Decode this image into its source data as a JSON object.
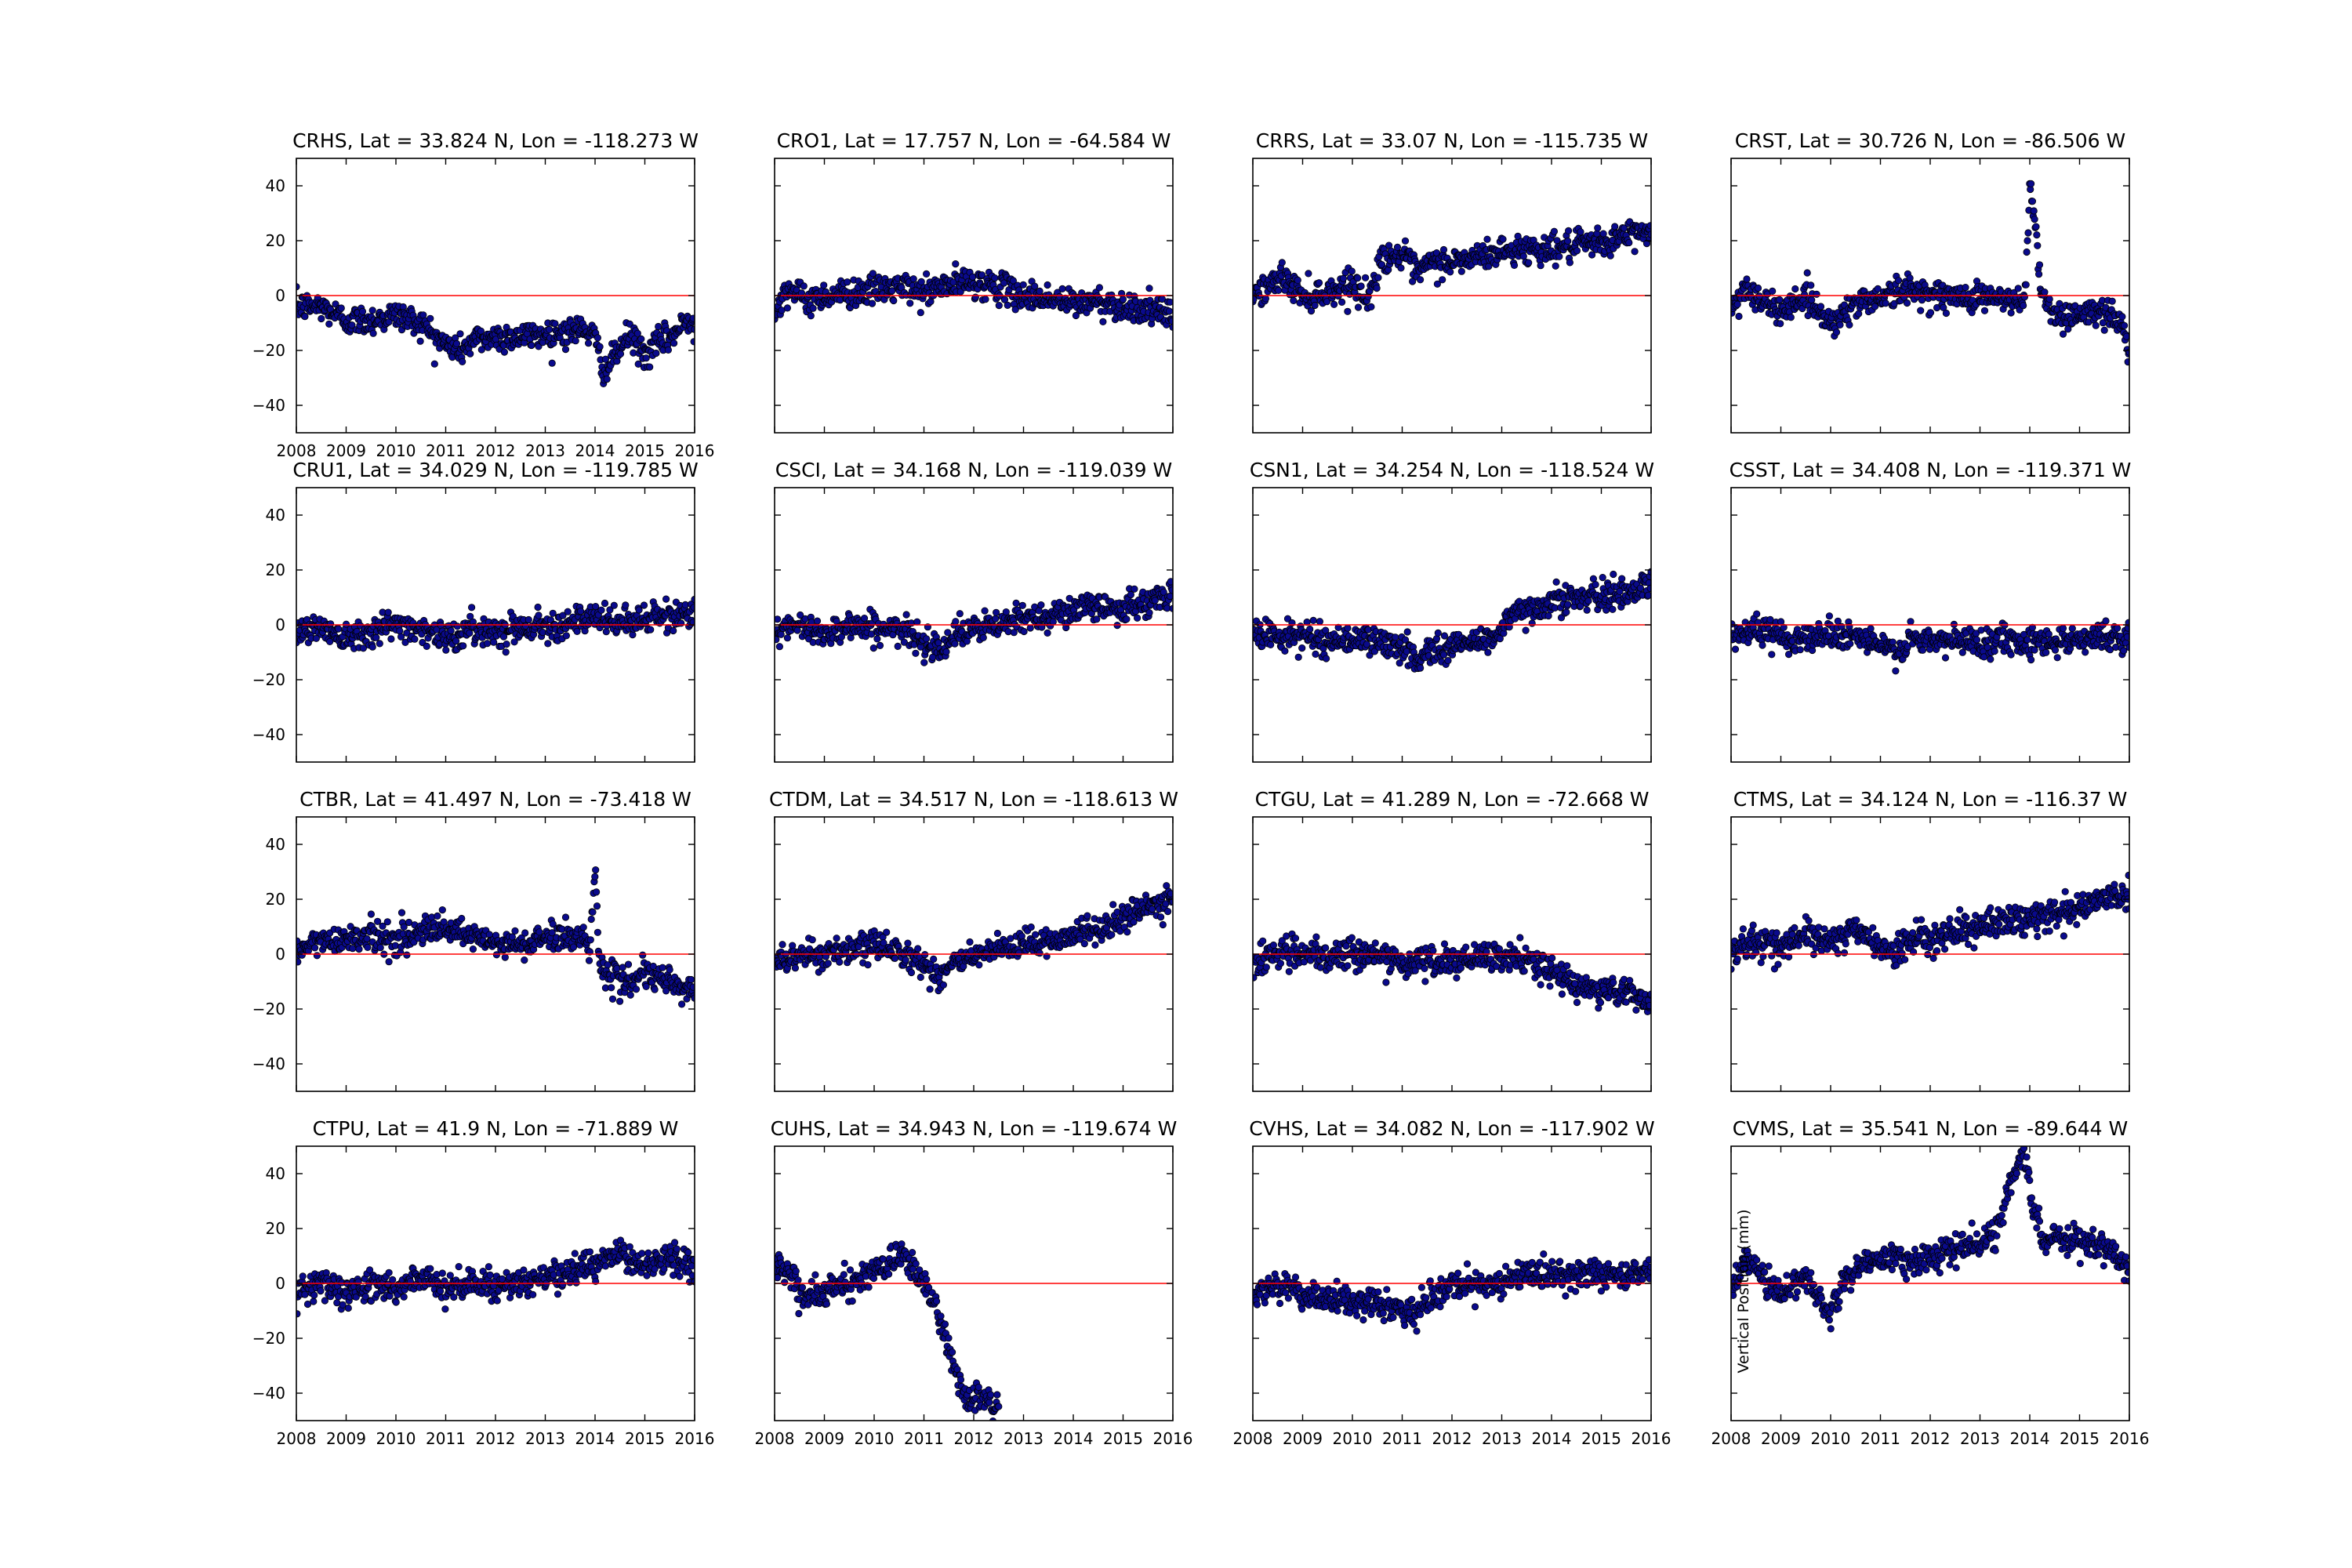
{
  "colors": {
    "marker_fill": "#0a0a8c",
    "marker_edge": "#000000",
    "zero_line": "#ff0000",
    "axes_frame": "#000000",
    "background": "#ffffff"
  },
  "chart_data": [
    {
      "type": "scatter",
      "title": "CRHS, Lat = 33.824 N, Lon = -118.273 W",
      "xlim": [
        2008,
        2016
      ],
      "ylim": [
        -50,
        50
      ],
      "xticks": [
        "2008",
        "2009",
        "2010",
        "2011",
        "2012",
        "2013",
        "2014",
        "2015",
        "2016"
      ],
      "yticks": [
        "40",
        "20",
        "0",
        "−20",
        "−40"
      ],
      "xlabel": "",
      "ylabel": "",
      "reference_line_y": 0,
      "series": [
        {
          "x": [
            2008.0,
            2008.5,
            2009.0,
            2009.5,
            2010.0,
            2010.5,
            2011.0,
            2011.3,
            2011.6,
            2012.0,
            2012.5,
            2013.0,
            2013.5,
            2013.8,
            2014.0,
            2014.2,
            2014.4,
            2014.7,
            2015.0,
            2015.3,
            2015.6,
            2015.9,
            2016.0
          ],
          "y": [
            -4,
            -4,
            -9,
            -9,
            -7,
            -10,
            -18,
            -20,
            -16,
            -15,
            -15,
            -14,
            -13,
            -12,
            -16,
            -28,
            -22,
            -14,
            -22,
            -17,
            -14,
            -8,
            -12
          ]
        }
      ]
    },
    {
      "type": "scatter",
      "title": "CRO1, Lat = 17.757 N, Lon = -64.584 W",
      "xlim": [
        2008,
        2016
      ],
      "ylim": [
        -50,
        50
      ],
      "xticks": [],
      "yticks": [],
      "xlabel": "",
      "ylabel": "",
      "reference_line_y": 0,
      "series": [
        {
          "x": [
            2008.0,
            2008.3,
            2008.6,
            2009.0,
            2009.5,
            2010.0,
            2010.5,
            2011.0,
            2011.5,
            2012.0,
            2012.5,
            2013.0,
            2013.5,
            2014.0,
            2014.5,
            2015.0,
            2015.5,
            2016.0
          ],
          "y": [
            -4,
            3,
            -2,
            0,
            1,
            2,
            3,
            1,
            4,
            5,
            3,
            0,
            -1,
            -3,
            -2,
            -4,
            -5,
            -8
          ]
        }
      ]
    },
    {
      "type": "scatter",
      "title": "CRRS, Lat = 33.07 N, Lon = -115.735 W",
      "xlim": [
        2008,
        2016
      ],
      "ylim": [
        -50,
        50
      ],
      "xticks": [],
      "yticks": [],
      "xlabel": "",
      "ylabel": "",
      "reference_line_y": 0,
      "series": [
        {
          "x": [
            2008.0,
            2008.3,
            2008.6,
            2009.0,
            2009.5,
            2010.0,
            2010.3,
            2010.6,
            2011.0,
            2011.3,
            2011.6,
            2012.0,
            2012.5,
            2013.0,
            2013.5,
            2014.0,
            2014.5,
            2015.0,
            2015.5,
            2016.0
          ],
          "y": [
            1,
            3,
            7,
            0,
            1,
            5,
            -2,
            14,
            15,
            8,
            12,
            12,
            14,
            16,
            17,
            17,
            18,
            19,
            22,
            24
          ]
        }
      ]
    },
    {
      "type": "scatter",
      "title": "CRST, Lat = 30.726 N, Lon = -86.506 W",
      "xlim": [
        2008,
        2016
      ],
      "ylim": [
        -50,
        50
      ],
      "xticks": [],
      "yticks": [],
      "xlabel": "",
      "ylabel": "",
      "reference_line_y": 0,
      "series": [
        {
          "x": [
            2008.0,
            2008.3,
            2008.6,
            2009.0,
            2009.5,
            2010.0,
            2010.5,
            2011.0,
            2011.5,
            2012.0,
            2012.5,
            2013.0,
            2013.6,
            2013.9,
            2014.0,
            2014.1,
            2014.2,
            2014.4,
            2014.7,
            2015.0,
            2015.3,
            2015.6,
            2015.9,
            2016.0
          ],
          "y": [
            -6,
            4,
            -3,
            -5,
            0,
            -10,
            -3,
            0,
            2,
            1,
            -1,
            0,
            -2,
            -3,
            40,
            30,
            5,
            -5,
            -8,
            -6,
            -7,
            -5,
            -12,
            -25
          ]
        }
      ]
    },
    {
      "type": "scatter",
      "title": "CRU1, Lat = 34.029 N, Lon = -119.785 W",
      "xlim": [
        2008,
        2016
      ],
      "ylim": [
        -50,
        50
      ],
      "xticks": [],
      "yticks": [
        "40",
        "20",
        "0",
        "−20",
        "−40"
      ],
      "xlabel": "",
      "ylabel": "",
      "reference_line_y": 0,
      "series": [
        {
          "x": [
            2008.0,
            2008.5,
            2009.0,
            2009.5,
            2010.0,
            2010.5,
            2011.0,
            2011.5,
            2012.0,
            2012.5,
            2013.0,
            2013.5,
            2014.0,
            2014.5,
            2015.0,
            2015.5,
            2016.0
          ],
          "y": [
            -2,
            -1,
            -4,
            -2,
            0,
            -1,
            -5,
            -2,
            -2,
            -1,
            0,
            1,
            2,
            1,
            2,
            3,
            5
          ]
        }
      ]
    },
    {
      "type": "scatter",
      "title": "CSCI, Lat = 34.168 N, Lon = -119.039 W",
      "xlim": [
        2008,
        2016
      ],
      "ylim": [
        -50,
        50
      ],
      "xticks": [],
      "yticks": [],
      "xlabel": "",
      "ylabel": "",
      "reference_line_y": 0,
      "series": [
        {
          "x": [
            2008.0,
            2008.5,
            2009.0,
            2009.5,
            2010.0,
            2010.5,
            2011.0,
            2011.3,
            2011.6,
            2012.0,
            2012.5,
            2013.0,
            2013.5,
            2014.0,
            2014.5,
            2015.0,
            2015.5,
            2016.0
          ],
          "y": [
            -2,
            -1,
            -3,
            0,
            -1,
            -2,
            -6,
            -8,
            -4,
            -2,
            0,
            2,
            4,
            5,
            7,
            6,
            8,
            11
          ]
        }
      ]
    },
    {
      "type": "scatter",
      "title": "CSN1, Lat = 34.254 N, Lon = -118.524 W",
      "xlim": [
        2008,
        2016
      ],
      "ylim": [
        -50,
        50
      ],
      "xticks": [],
      "yticks": [],
      "xlabel": "",
      "ylabel": "",
      "reference_line_y": 0,
      "series": [
        {
          "x": [
            2008.0,
            2008.5,
            2009.0,
            2009.5,
            2010.0,
            2010.5,
            2011.0,
            2011.3,
            2011.6,
            2012.0,
            2012.5,
            2012.9,
            2013.1,
            2013.5,
            2014.0,
            2014.5,
            2015.0,
            2015.5,
            2016.0
          ],
          "y": [
            -3,
            -4,
            -4,
            -6,
            -5,
            -6,
            -9,
            -12,
            -9,
            -8,
            -6,
            -4,
            2,
            5,
            9,
            10,
            10,
            12,
            15
          ]
        }
      ]
    },
    {
      "type": "scatter",
      "title": "CSST, Lat = 34.408 N, Lon = -119.371 W",
      "xlim": [
        2008,
        2016
      ],
      "ylim": [
        -50,
        50
      ],
      "xticks": [],
      "yticks": [],
      "xlabel": "",
      "ylabel": "",
      "reference_line_y": 0,
      "series": [
        {
          "x": [
            2008.0,
            2008.5,
            2009.0,
            2009.5,
            2010.0,
            2010.5,
            2011.0,
            2011.3,
            2011.6,
            2012.0,
            2012.5,
            2013.0,
            2013.5,
            2014.0,
            2014.5,
            2015.0,
            2015.5,
            2016.0
          ],
          "y": [
            -3,
            -2,
            -4,
            -5,
            -3,
            -4,
            -8,
            -10,
            -6,
            -6,
            -6,
            -6,
            -5,
            -6,
            -6,
            -5,
            -4,
            -6
          ]
        }
      ]
    },
    {
      "type": "scatter",
      "title": "CTBR, Lat = 41.497 N, Lon = -73.418 W",
      "xlim": [
        2008,
        2016
      ],
      "ylim": [
        -50,
        50
      ],
      "xticks": [],
      "yticks": [
        "40",
        "20",
        "0",
        "−20",
        "−40"
      ],
      "xlabel": "",
      "ylabel": "",
      "reference_line_y": 0,
      "series": [
        {
          "x": [
            2008.0,
            2008.5,
            2009.0,
            2009.5,
            2010.0,
            2010.5,
            2011.0,
            2011.5,
            2012.0,
            2012.5,
            2013.0,
            2013.5,
            2013.9,
            2014.0,
            2014.1,
            2014.3,
            2014.6,
            2015.0,
            2015.5,
            2016.0
          ],
          "y": [
            1,
            5,
            6,
            7,
            5,
            8,
            9,
            6,
            4,
            3,
            6,
            7,
            4,
            32,
            -5,
            -8,
            -10,
            -8,
            -10,
            -14
          ]
        }
      ]
    },
    {
      "type": "scatter",
      "title": "CTDM, Lat = 34.517 N, Lon = -118.613 W",
      "xlim": [
        2008,
        2016
      ],
      "ylim": [
        -50,
        50
      ],
      "xticks": [],
      "yticks": [],
      "xlabel": "",
      "ylabel": "",
      "reference_line_y": 0,
      "series": [
        {
          "x": [
            2008.0,
            2008.5,
            2009.0,
            2009.5,
            2010.0,
            2010.5,
            2011.0,
            2011.3,
            2011.6,
            2012.0,
            2012.5,
            2013.0,
            2013.5,
            2014.0,
            2014.5,
            2015.0,
            2015.5,
            2016.0
          ],
          "y": [
            -3,
            0,
            0,
            1,
            3,
            2,
            -4,
            -8,
            -3,
            -1,
            1,
            3,
            5,
            7,
            9,
            13,
            17,
            20
          ]
        }
      ]
    },
    {
      "type": "scatter",
      "title": "CTGU, Lat = 41.289 N, Lon = -72.668 W",
      "xlim": [
        2008,
        2016
      ],
      "ylim": [
        -50,
        50
      ],
      "xticks": [],
      "yticks": [],
      "xlabel": "",
      "ylabel": "",
      "reference_line_y": 0,
      "series": [
        {
          "x": [
            2008.0,
            2008.5,
            2009.0,
            2009.5,
            2010.0,
            2010.5,
            2011.0,
            2011.5,
            2012.0,
            2012.5,
            2013.0,
            2013.5,
            2014.0,
            2014.5,
            2015.0,
            2015.5,
            2016.0
          ],
          "y": [
            -3,
            1,
            0,
            -2,
            1,
            0,
            -4,
            -2,
            -3,
            -2,
            -1,
            -2,
            -6,
            -12,
            -13,
            -14,
            -17
          ]
        }
      ]
    },
    {
      "type": "scatter",
      "title": "CTMS, Lat = 34.124 N, Lon = -116.37 W",
      "xlim": [
        2008,
        2016
      ],
      "ylim": [
        -50,
        50
      ],
      "xticks": [],
      "yticks": [],
      "xlabel": "",
      "ylabel": "",
      "reference_line_y": 0,
      "series": [
        {
          "x": [
            2008.0,
            2008.5,
            2009.0,
            2009.5,
            2010.0,
            2010.5,
            2011.0,
            2011.3,
            2011.6,
            2012.0,
            2012.5,
            2013.0,
            2013.5,
            2014.0,
            2014.5,
            2015.0,
            2015.5,
            2016.0
          ],
          "y": [
            1,
            5,
            3,
            7,
            5,
            9,
            3,
            -1,
            5,
            7,
            8,
            10,
            12,
            13,
            15,
            17,
            20,
            22
          ]
        }
      ]
    },
    {
      "type": "scatter",
      "title": "CTPU, Lat = 41.9 N, Lon = -71.889 W",
      "xlim": [
        2008,
        2016
      ],
      "ylim": [
        -50,
        50
      ],
      "xticks": [
        "2008",
        "2009",
        "2010",
        "2011",
        "2012",
        "2013",
        "2014",
        "2015",
        "2016"
      ],
      "yticks": [
        "40",
        "20",
        "0",
        "−20",
        "−40"
      ],
      "xlabel": "",
      "ylabel": "",
      "reference_line_y": 0,
      "series": [
        {
          "x": [
            2008.0,
            2008.5,
            2009.0,
            2009.5,
            2010.0,
            2010.5,
            2011.0,
            2011.5,
            2012.0,
            2012.5,
            2013.0,
            2013.5,
            2014.0,
            2014.5,
            2015.0,
            2015.5,
            2016.0
          ],
          "y": [
            -3,
            1,
            -4,
            0,
            -2,
            2,
            -1,
            0,
            -1,
            1,
            2,
            4,
            7,
            11,
            6,
            11,
            5
          ]
        }
      ]
    },
    {
      "type": "scatter",
      "title": "CUHS, Lat = 34.943 N, Lon = -119.674 W",
      "xlim": [
        2008,
        2016
      ],
      "ylim": [
        -50,
        50
      ],
      "xticks": [
        "2008",
        "2009",
        "2010",
        "2011",
        "2012",
        "2013",
        "2014",
        "2015",
        "2016"
      ],
      "yticks": [],
      "xlabel": "",
      "ylabel": "",
      "reference_line_y": 0,
      "series": [
        {
          "x": [
            2008.0,
            2008.3,
            2008.6,
            2009.0,
            2009.5,
            2010.0,
            2010.3,
            2010.6,
            2011.0,
            2011.3,
            2011.6,
            2011.9,
            2012.1,
            2012.3,
            2012.5
          ],
          "y": [
            6,
            4,
            -5,
            -3,
            0,
            4,
            8,
            10,
            0,
            -12,
            -30,
            -45,
            -40,
            -42,
            -45
          ]
        }
      ]
    },
    {
      "type": "scatter",
      "title": "CVHS, Lat = 34.082 N, Lon = -117.902 W",
      "xlim": [
        2008,
        2016
      ],
      "ylim": [
        -50,
        50
      ],
      "xticks": [
        "2008",
        "2009",
        "2010",
        "2011",
        "2012",
        "2013",
        "2014",
        "2015",
        "2016"
      ],
      "yticks": [],
      "xlabel": "",
      "ylabel": "",
      "reference_line_y": 0,
      "series": [
        {
          "x": [
            2008.0,
            2008.5,
            2009.0,
            2009.5,
            2010.0,
            2010.5,
            2011.0,
            2011.3,
            2011.6,
            2012.0,
            2012.5,
            2013.0,
            2013.5,
            2014.0,
            2014.5,
            2015.0,
            2015.5,
            2016.0
          ],
          "y": [
            -3,
            -1,
            -4,
            -6,
            -7,
            -8,
            -9,
            -11,
            -5,
            -2,
            -1,
            1,
            3,
            4,
            3,
            4,
            3,
            5
          ]
        }
      ]
    },
    {
      "type": "scatter",
      "title": "CVMS, Lat = 35.541 N, Lon = -89.644 W",
      "xlim": [
        2008,
        2016
      ],
      "ylim": [
        -50,
        50
      ],
      "xticks": [
        "2008",
        "2009",
        "2010",
        "2011",
        "2012",
        "2013",
        "2014",
        "2015",
        "2016"
      ],
      "yticks": [],
      "xlabel": "",
      "ylabel": "Vertical Position (mm)",
      "reference_line_y": 0,
      "series": [
        {
          "x": [
            2008.0,
            2008.3,
            2008.6,
            2009.0,
            2009.5,
            2010.0,
            2010.2,
            2010.5,
            2011.0,
            2011.5,
            2012.0,
            2012.5,
            2013.0,
            2013.3,
            2013.6,
            2013.9,
            2014.1,
            2014.3,
            2014.6,
            2015.0,
            2015.5,
            2016.0
          ],
          "y": [
            -3,
            10,
            2,
            -3,
            2,
            -12,
            0,
            5,
            10,
            8,
            10,
            12,
            15,
            18,
            35,
            48,
            25,
            15,
            18,
            15,
            14,
            5
          ]
        }
      ]
    }
  ]
}
